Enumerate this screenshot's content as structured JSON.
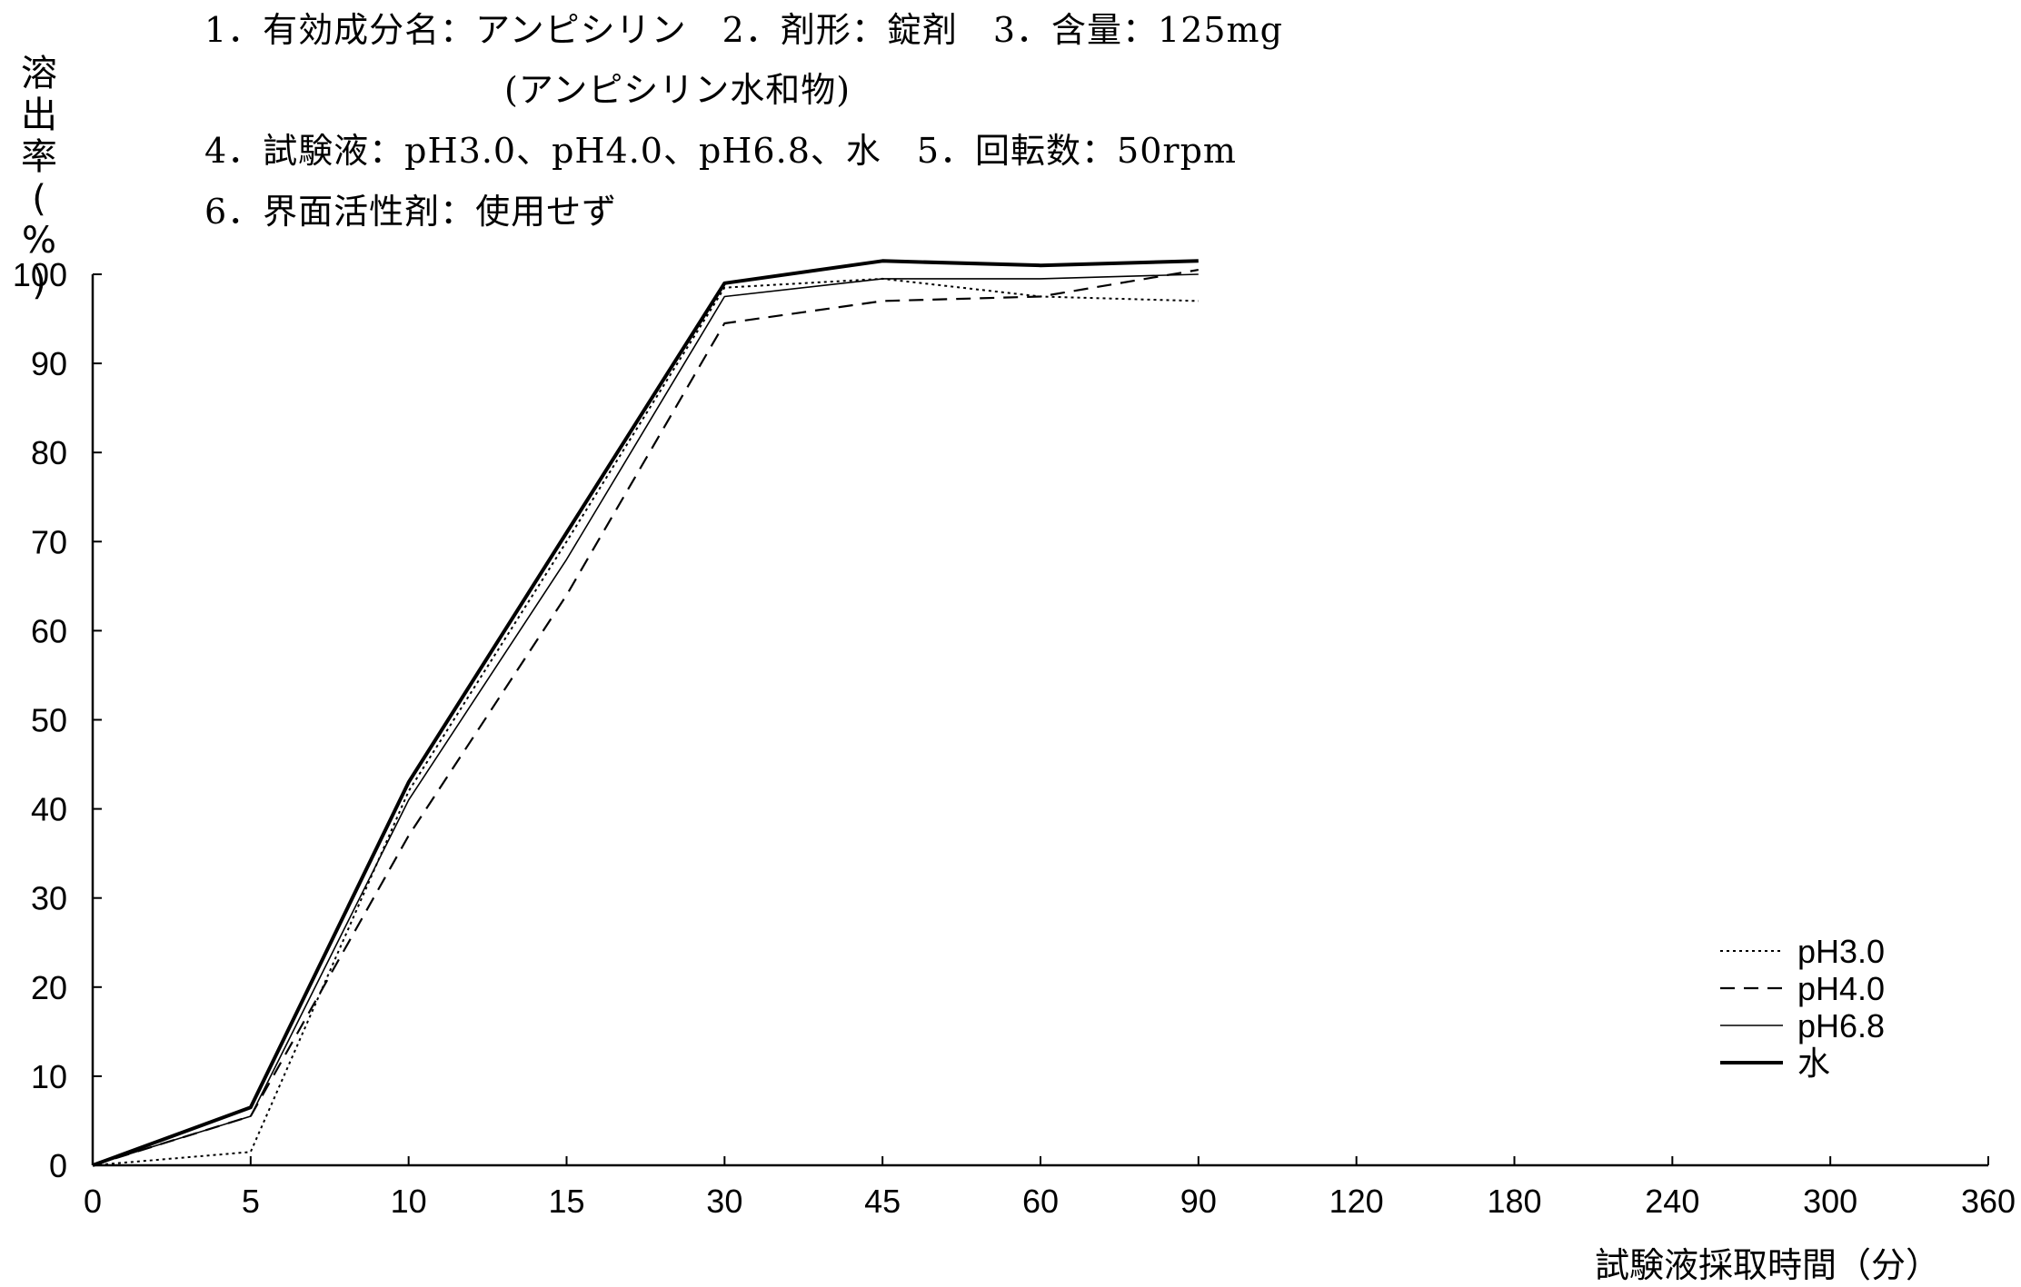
{
  "info": {
    "line1": "1．有効成分名：アンピシリン　2．剤形：錠剤　3．含量：125mg",
    "line2": "(アンピシリン水和物)",
    "line3": "4．試験液：pH3.0、pH4.0、pH6.8、水　5．回転数：50rpm",
    "line4": "6．界面活性剤：使用せず"
  },
  "ylabel_chars": [
    "溶",
    "出",
    "率",
    "(",
    "%",
    ")"
  ],
  "chart_data": {
    "type": "line",
    "title": "",
    "xlabel": "試験液採取時間（分）",
    "ylabel": "溶出率(%)",
    "categories": [
      "0",
      "5",
      "10",
      "15",
      "30",
      "45",
      "60",
      "90",
      "120",
      "180",
      "240",
      "300",
      "360"
    ],
    "ylim": [
      0,
      100
    ],
    "yticks": [
      "0",
      "10",
      "20",
      "30",
      "40",
      "50",
      "60",
      "70",
      "80",
      "90",
      "100"
    ],
    "grid": false,
    "legend_position": "bottom-right",
    "series": [
      {
        "name": "pH3.0",
        "style": "dotted",
        "color": "#000000",
        "x": [
          "0",
          "5",
          "10",
          "15",
          "30",
          "45",
          "60",
          "90"
        ],
        "values": [
          0,
          1.5,
          42,
          70,
          98.5,
          99.5,
          97.5,
          97
        ]
      },
      {
        "name": "pH4.0",
        "style": "dashed",
        "color": "#000000",
        "x": [
          "0",
          "5",
          "10",
          "15",
          "30",
          "45",
          "60",
          "90"
        ],
        "values": [
          0,
          5.5,
          37,
          64,
          94.5,
          97,
          97.5,
          100.5
        ]
      },
      {
        "name": "pH6.8",
        "style": "thin",
        "color": "#000000",
        "x": [
          "0",
          "5",
          "10",
          "15",
          "30",
          "45",
          "60",
          "90"
        ],
        "values": [
          0,
          5.5,
          41,
          68,
          97.5,
          99.5,
          99.5,
          100
        ]
      },
      {
        "name": "水",
        "style": "thick",
        "color": "#000000",
        "x": [
          "0",
          "5",
          "10",
          "15",
          "30",
          "45",
          "60",
          "90"
        ],
        "values": [
          0,
          6.5,
          43,
          71,
          99,
          101.5,
          101,
          101.5
        ]
      }
    ]
  }
}
